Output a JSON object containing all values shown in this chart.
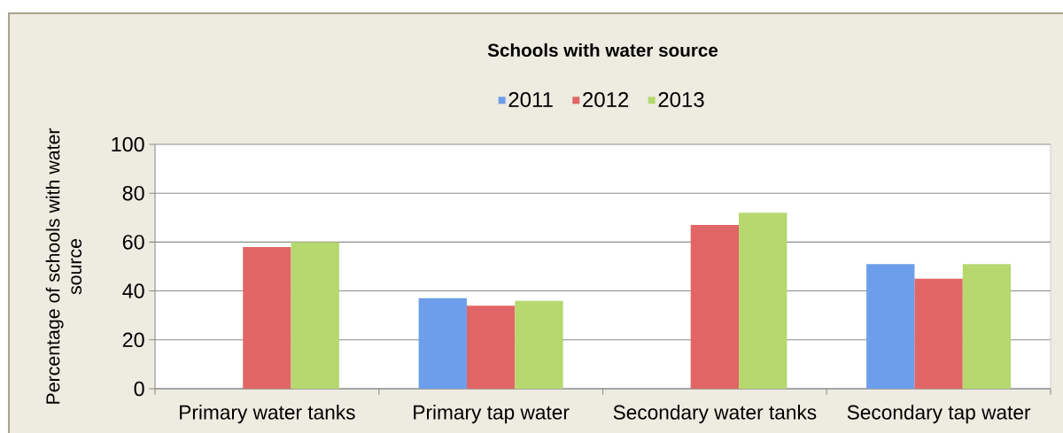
{
  "chart_data": {
    "type": "bar",
    "title": "Schools with water source",
    "ylabel": "Percentage of schools with water source",
    "categories": [
      "Primary water tanks",
      "Primary tap water",
      "Secondary water tanks",
      "Secondary tap water"
    ],
    "series": [
      {
        "name": "2011",
        "color": "#6d9eeb",
        "values": [
          null,
          37,
          null,
          51
        ]
      },
      {
        "name": "2012",
        "color": "#e06666",
        "values": [
          58,
          34,
          67,
          45
        ]
      },
      {
        "name": "2013",
        "color": "#b6d86f",
        "values": [
          60,
          36,
          72,
          51
        ]
      }
    ],
    "ylim": [
      0,
      100
    ],
    "yticks": [
      0,
      20,
      40,
      60,
      80,
      100
    ],
    "grid": "y",
    "legend": "top"
  }
}
